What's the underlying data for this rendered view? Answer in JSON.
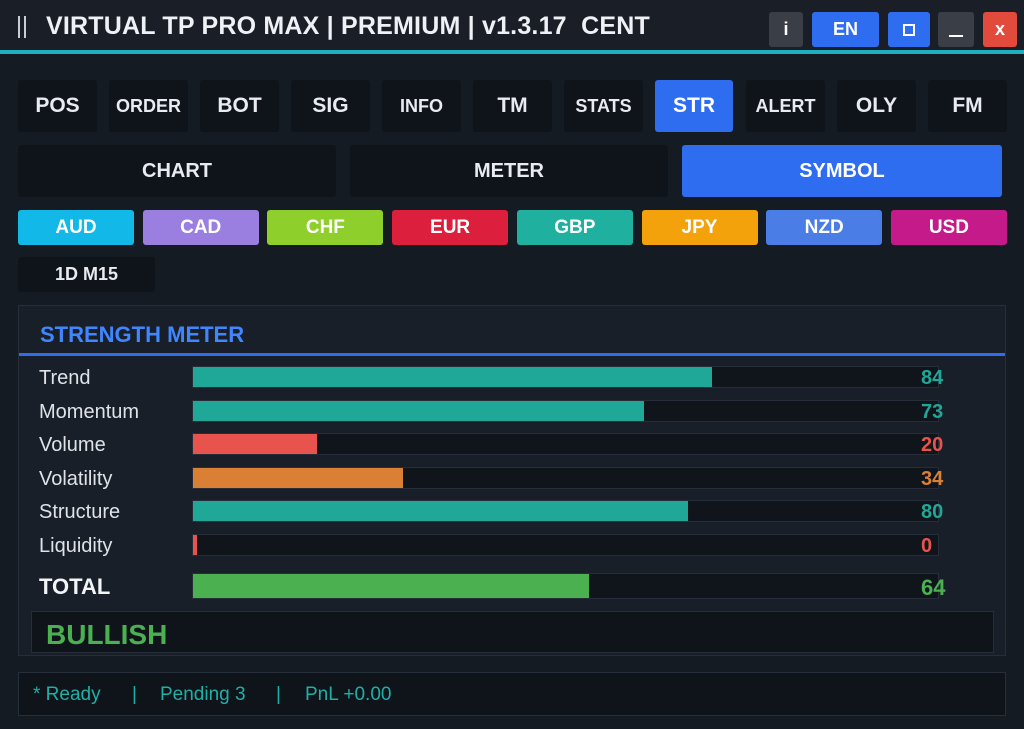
{
  "window": {
    "title": "VIRTUAL TP PRO MAX | PREMIUM | v1.3.17  CENT",
    "info_label": "i",
    "lang_label": "EN",
    "close_label": "x"
  },
  "tabs": [
    {
      "label": "POS",
      "active": false
    },
    {
      "label": "ORDER",
      "active": false
    },
    {
      "label": "BOT",
      "active": false
    },
    {
      "label": "SIG",
      "active": false
    },
    {
      "label": "INFO",
      "active": false
    },
    {
      "label": "TM",
      "active": false
    },
    {
      "label": "STATS",
      "active": false
    },
    {
      "label": "STR",
      "active": true
    },
    {
      "label": "ALERT",
      "active": false
    },
    {
      "label": "OLY",
      "active": false
    },
    {
      "label": "FM",
      "active": false
    }
  ],
  "subtabs": [
    {
      "label": "CHART",
      "active": false
    },
    {
      "label": "METER",
      "active": false
    },
    {
      "label": "SYMBOL",
      "active": true
    }
  ],
  "currencies": [
    {
      "label": "AUD",
      "color": "#12b9e8"
    },
    {
      "label": "CAD",
      "color": "#9b7fe0"
    },
    {
      "label": "CHF",
      "color": "#8fcf2c"
    },
    {
      "label": "EUR",
      "color": "#dc1f3c"
    },
    {
      "label": "GBP",
      "color": "#1fb0a0"
    },
    {
      "label": "JPY",
      "color": "#f4a20c"
    },
    {
      "label": "NZD",
      "color": "#4a7ee6"
    },
    {
      "label": "USD",
      "color": "#c41a8a"
    }
  ],
  "timeframe": "1D M15",
  "strength": {
    "title": "STRENGTH METER",
    "rows": [
      {
        "label": "Trend",
        "value": "84",
        "pct": 84,
        "color": "#1fa898"
      },
      {
        "label": "Momentum",
        "value": "73",
        "pct": 73,
        "color": "#1fa898"
      },
      {
        "label": "Volume",
        "value": "20",
        "pct": 20,
        "color": "#e9534d"
      },
      {
        "label": "Volatility",
        "value": "34",
        "pct": 34,
        "color": "#d98035"
      },
      {
        "label": "Structure",
        "value": "80",
        "pct": 80,
        "color": "#1fa898"
      },
      {
        "label": "Liquidity",
        "value": "0",
        "pct": 0,
        "color": "#e9534d"
      }
    ],
    "total": {
      "label": "TOTAL",
      "value": "64",
      "pct": 64,
      "color": "#4bb050"
    },
    "verdict": "BULLISH"
  },
  "status": {
    "ready": "* Ready",
    "sep1": "|",
    "pending": "Pending 3",
    "sep2": "|",
    "pnl": "PnL +0.00"
  }
}
